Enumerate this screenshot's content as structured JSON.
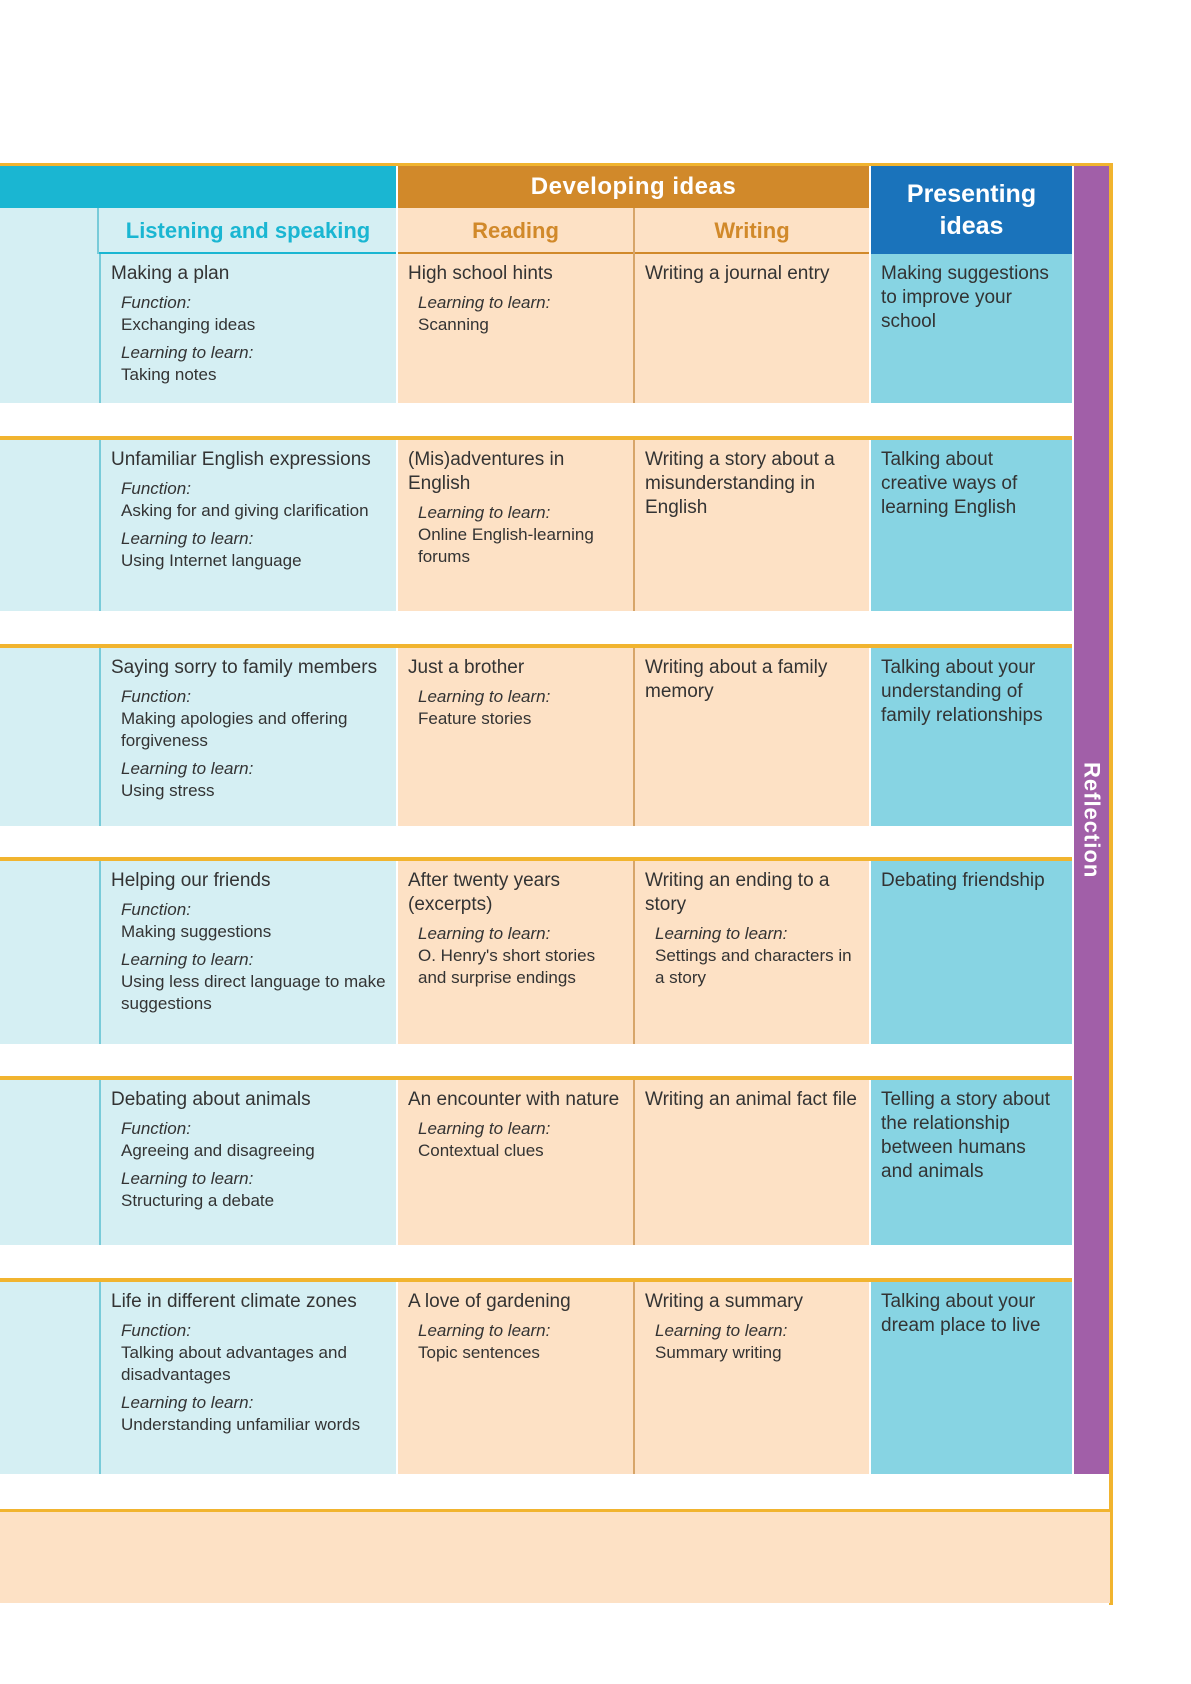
{
  "headers": {
    "developing": "Developing ideas",
    "presenting": "Presenting ideas",
    "listening": "Listening and speaking",
    "reading": "Reading",
    "writing": "Writing",
    "reflection": "Reflection"
  },
  "rows": [
    {
      "listening": {
        "title": "Making a plan",
        "function_label": "Function:",
        "function": "Exchanging ideas",
        "ltl_label": "Learning to learn:",
        "ltl": "Taking notes"
      },
      "reading": {
        "title": "High school hints",
        "ltl_label": "Learning to learn:",
        "ltl": "Scanning"
      },
      "writing": {
        "title": "Writing a journal entry"
      },
      "presenting": "Making suggestions to improve your school"
    },
    {
      "listening": {
        "title": "Unfamiliar English expressions",
        "function_label": "Function:",
        "function": "Asking for and giving clarification",
        "ltl_label": "Learning to learn:",
        "ltl": "Using Internet language"
      },
      "reading": {
        "title": "(Mis)adventures in English",
        "ltl_label": "Learning to learn:",
        "ltl": "Online English-learning forums"
      },
      "writing": {
        "title": "Writing a story about a misunderstanding in English"
      },
      "presenting": "Talking about creative ways of learning English"
    },
    {
      "listening": {
        "title": "Saying sorry to family members",
        "function_label": "Function:",
        "function": "Making apologies and offering forgiveness",
        "ltl_label": "Learning to learn:",
        "ltl": "Using stress"
      },
      "reading": {
        "title": "Just a brother",
        "ltl_label": "Learning to learn:",
        "ltl": "Feature stories"
      },
      "writing": {
        "title": "Writing about a family memory"
      },
      "presenting": "Talking about your understanding of family relationships"
    },
    {
      "listening": {
        "title": "Helping our friends",
        "function_label": "Function:",
        "function": "Making suggestions",
        "ltl_label": "Learning to learn:",
        "ltl": "Using less direct language to make suggestions"
      },
      "reading": {
        "title": "After twenty years (excerpts)",
        "ltl_label": "Learning to learn:",
        "ltl": "O. Henry's short stories and surprise endings"
      },
      "writing": {
        "title": "Writing an ending to a story",
        "ltl_label": "Learning to learn:",
        "ltl": "Settings and characters in a story"
      },
      "presenting": "Debating friendship"
    },
    {
      "listening": {
        "title": "Debating about animals",
        "function_label": "Function:",
        "function": "Agreeing and disagreeing",
        "ltl_label": "Learning to learn:",
        "ltl": "Structuring a debate"
      },
      "reading": {
        "title": "An encounter with nature",
        "ltl_label": "Learning to learn:",
        "ltl": "Contextual clues"
      },
      "writing": {
        "title": "Writing an animal fact file"
      },
      "presenting": "Telling a story about the relationship between humans and animals"
    },
    {
      "listening": {
        "title": "Life in different climate zones",
        "function_label": "Function:",
        "function": "Talking about advantages and disadvantages",
        "ltl_label": "Learning to learn:",
        "ltl": "Understanding unfamiliar words"
      },
      "reading": {
        "title": "A love of gardening",
        "ltl_label": "Learning to learn:",
        "ltl": "Topic sentences"
      },
      "writing": {
        "title": "Writing a summary",
        "ltl_label": "Learning to learn:",
        "ltl": "Summary writing"
      },
      "presenting": "Talking about your dream place to live"
    }
  ]
}
